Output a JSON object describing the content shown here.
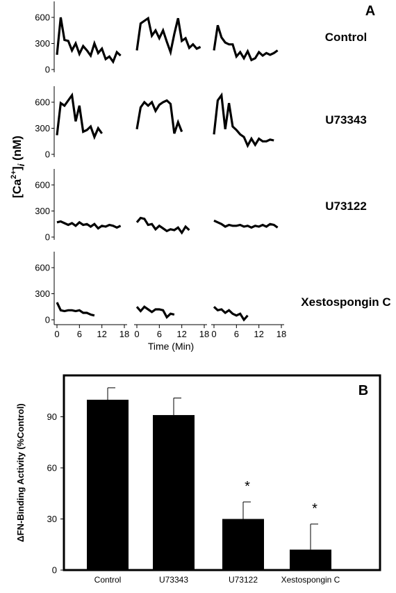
{
  "chart_data": [
    {
      "panel": "A",
      "type": "line",
      "ylabel": "[Ca2+]i (nM)",
      "ylabel_parts": {
        "pre": "[Ca",
        "sup": "2+",
        "mid": "]",
        "sub": "i",
        "post": " (nM)"
      },
      "xlabel": "Time (Min)",
      "x_ticks": [
        "0",
        "6",
        "12",
        "18"
      ],
      "y_ticks": [
        "0",
        "300",
        "600"
      ],
      "xlim": [
        0,
        18
      ],
      "ylim": [
        0,
        650
      ],
      "conditions": [
        {
          "name": "Control",
          "traces": [
            {
              "x": [
                0,
                1,
                2,
                3,
                4,
                5,
                6,
                7,
                8,
                9,
                10,
                11,
                12,
                13,
                14,
                15,
                16,
                17
              ],
              "y": [
                170,
                600,
                340,
                330,
                220,
                300,
                180,
                270,
                220,
                160,
                300,
                190,
                240,
                120,
                150,
                90,
                200,
                160
              ]
            },
            {
              "x": [
                0,
                1,
                2,
                3,
                4,
                5,
                6,
                7,
                8,
                9,
                10,
                11,
                12,
                13,
                14,
                15,
                16,
                17
              ],
              "y": [
                220,
                530,
                560,
                590,
                390,
                450,
                360,
                450,
                320,
                200,
                410,
                590,
                330,
                360,
                250,
                290,
                240,
                260
              ]
            },
            {
              "x": [
                0,
                1,
                2,
                3,
                4,
                5,
                6,
                7,
                8,
                9,
                10,
                11,
                12,
                13,
                14,
                15,
                16,
                17
              ],
              "y": [
                220,
                510,
                370,
                310,
                290,
                290,
                150,
                200,
                130,
                210,
                110,
                130,
                200,
                160,
                190,
                170,
                190,
                220
              ]
            }
          ]
        },
        {
          "name": "U73343",
          "traces": [
            {
              "x": [
                0,
                1,
                2,
                3,
                4,
                5,
                6,
                7,
                8,
                9,
                10,
                11,
                12
              ],
              "y": [
                220,
                590,
                560,
                620,
                680,
                380,
                560,
                260,
                280,
                320,
                200,
                300,
                240
              ]
            },
            {
              "x": [
                0,
                1,
                2,
                3,
                4,
                5,
                6,
                7,
                8,
                9,
                10,
                11,
                12
              ],
              "y": [
                290,
                540,
                600,
                560,
                600,
                500,
                570,
                600,
                620,
                580,
                240,
                370,
                260
              ]
            },
            {
              "x": [
                0,
                1,
                2,
                3,
                4,
                5,
                6,
                7,
                8,
                9,
                10,
                11,
                12,
                13,
                14,
                15,
                16
              ],
              "y": [
                230,
                620,
                680,
                290,
                590,
                320,
                280,
                230,
                200,
                100,
                180,
                110,
                180,
                150,
                150,
                170,
                160
              ]
            }
          ]
        },
        {
          "name": "U73122",
          "traces": [
            {
              "x": [
                0,
                1,
                2,
                3,
                4,
                5,
                6,
                7,
                8,
                9,
                10,
                11,
                12,
                13,
                14,
                15,
                16,
                17
              ],
              "y": [
                170,
                180,
                160,
                140,
                160,
                130,
                170,
                140,
                150,
                120,
                150,
                100,
                130,
                120,
                140,
                130,
                110,
                130
              ]
            },
            {
              "x": [
                0,
                1,
                2,
                3,
                4,
                5,
                6,
                7,
                8,
                9,
                10,
                11,
                12,
                13,
                14
              ],
              "y": [
                170,
                220,
                210,
                140,
                150,
                90,
                130,
                100,
                70,
                90,
                80,
                110,
                50,
                120,
                80
              ]
            },
            {
              "x": [
                0,
                1,
                2,
                3,
                4,
                5,
                6,
                7,
                8,
                9,
                10,
                11,
                12,
                13,
                14,
                15,
                16,
                17
              ],
              "y": [
                190,
                170,
                150,
                120,
                140,
                130,
                130,
                140,
                120,
                130,
                110,
                130,
                120,
                140,
                120,
                150,
                140,
                110
              ]
            }
          ]
        },
        {
          "name": "Xestospongin C",
          "traces": [
            {
              "x": [
                0,
                1,
                2,
                3,
                4,
                5,
                6,
                7,
                8,
                9,
                10
              ],
              "y": [
                200,
                110,
                100,
                110,
                110,
                100,
                110,
                80,
                80,
                60,
                50
              ]
            },
            {
              "x": [
                0,
                1,
                2,
                3,
                4,
                5,
                6,
                7,
                8,
                9,
                10
              ],
              "y": [
                150,
                100,
                150,
                120,
                90,
                120,
                120,
                110,
                30,
                70,
                60
              ]
            },
            {
              "x": [
                0,
                1,
                2,
                3,
                4,
                5,
                6,
                7,
                8,
                9
              ],
              "y": [
                150,
                110,
                120,
                80,
                110,
                70,
                50,
                70,
                0,
                50
              ]
            }
          ]
        }
      ]
    },
    {
      "panel": "B",
      "type": "bar",
      "ylabel": "ΔFN-Binding Activity (%Control)",
      "categories": [
        "Control",
        "U73343",
        "U73122",
        "Xestospongin C"
      ],
      "values": [
        100,
        91,
        30,
        12
      ],
      "errors": [
        7,
        10,
        10,
        15
      ],
      "significance": [
        "",
        "",
        "*",
        "*"
      ],
      "y_ticks": [
        "0",
        "30",
        "60",
        "90"
      ],
      "ylim": [
        0,
        113
      ]
    }
  ]
}
